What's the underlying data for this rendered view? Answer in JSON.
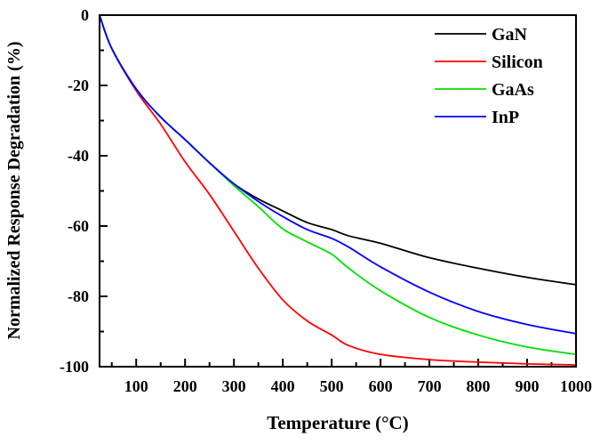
{
  "chart_data": {
    "type": "line",
    "title": "",
    "xlabel": "Temperature (°C)",
    "ylabel": "Normalized Response Degradation (%)",
    "xlim": [
      25,
      1000
    ],
    "ylim": [
      -100,
      0
    ],
    "xticks": [
      100,
      200,
      300,
      400,
      500,
      600,
      700,
      800,
      900,
      1000
    ],
    "yticks": [
      0,
      -20,
      -40,
      -60,
      -80,
      -100
    ],
    "grid": false,
    "legend_position": "top-right",
    "x": [
      25,
      50,
      100,
      150,
      200,
      250,
      300,
      350,
      400,
      450,
      500,
      535,
      600,
      700,
      800,
      900,
      1000
    ],
    "series": [
      {
        "name": "GaN",
        "color": "#000000",
        "values": [
          0,
          -9.5,
          -21,
          -29,
          -35.4,
          -42,
          -48,
          -52.3,
          -55.7,
          -59,
          -61,
          -62.8,
          -64.9,
          -69,
          -72,
          -74.6,
          -76.7
        ]
      },
      {
        "name": "Silicon",
        "color": "#ff0000",
        "values": [
          0,
          -9.5,
          -21.5,
          -31,
          -41.7,
          -51,
          -61.5,
          -72,
          -81,
          -87,
          -91,
          -94,
          -96.5,
          -98,
          -98.7,
          -99.2,
          -99.5
        ]
      },
      {
        "name": "GaAs",
        "color": "#00e000",
        "values": [
          0,
          -9.5,
          -21,
          -29,
          -35.4,
          -42,
          -48.5,
          -54.5,
          -60.8,
          -64.5,
          -68,
          -72,
          -78.4,
          -86,
          -91,
          -94.4,
          -96.5
        ]
      },
      {
        "name": "InP",
        "color": "#0000ff",
        "values": [
          0,
          -9.5,
          -21,
          -29,
          -35.4,
          -42,
          -48,
          -53,
          -57.3,
          -61,
          -63.5,
          -66,
          -71.6,
          -78.8,
          -84.3,
          -88,
          -90.6
        ]
      }
    ]
  }
}
